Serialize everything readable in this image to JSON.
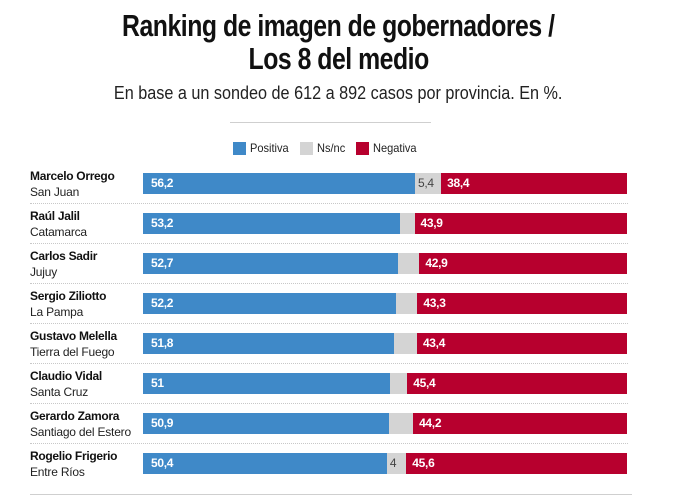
{
  "chart_data": {
    "type": "bar",
    "orientation": "horizontal-stacked",
    "title": [
      "Ranking de imagen de gobernadores /",
      "Los 8 del medio"
    ],
    "subtitle": "En base a un sondeo de 612 a 892 casos por provincia. En %.",
    "legend": [
      {
        "name": "Positiva",
        "color": "#3f89c8"
      },
      {
        "name": "Ns/nc",
        "color": "#d4d4d4"
      },
      {
        "name": "Negativa",
        "color": "#b7002e"
      }
    ],
    "legend_position": "top-center",
    "xlim": [
      0,
      100
    ],
    "rows": [
      {
        "name": "Marcelo Orrego",
        "province": "San Juan",
        "positiva": 56.2,
        "nsnc": 5.4,
        "negativa": 38.4,
        "pos_label": "56,2",
        "ns_label": "5,4",
        "neg_label": "38,4"
      },
      {
        "name": "Raúl Jalil",
        "province": "Catamarca",
        "positiva": 53.2,
        "nsnc": null,
        "negativa": 43.9,
        "pos_label": "53,2",
        "ns_label": "",
        "neg_label": "43,9"
      },
      {
        "name": "Carlos Sadir",
        "province": "Jujuy",
        "positiva": 52.7,
        "nsnc": null,
        "negativa": 42.9,
        "pos_label": "52,7",
        "ns_label": "",
        "neg_label": "42,9"
      },
      {
        "name": "Sergio Ziliotto",
        "province": "La Pampa",
        "positiva": 52.2,
        "nsnc": null,
        "negativa": 43.3,
        "pos_label": "52,2",
        "ns_label": "",
        "neg_label": "43,3"
      },
      {
        "name": "Gustavo Melella",
        "province": "Tierra del Fuego",
        "positiva": 51.8,
        "nsnc": null,
        "negativa": 43.4,
        "pos_label": "51,8",
        "ns_label": "",
        "neg_label": "43,4"
      },
      {
        "name": "Claudio Vidal",
        "province": "Santa Cruz",
        "positiva": 51,
        "nsnc": null,
        "negativa": 45.4,
        "pos_label": "51",
        "ns_label": "",
        "neg_label": "45,4"
      },
      {
        "name": "Gerardo Zamora",
        "province": "Santiago del Estero",
        "positiva": 50.9,
        "nsnc": null,
        "negativa": 44.2,
        "pos_label": "50,9",
        "ns_label": "",
        "neg_label": "44,2"
      },
      {
        "name": "Rogelio Frigerio",
        "province": "Entre Ríos",
        "positiva": 50.4,
        "nsnc": 4,
        "negativa": 45.6,
        "pos_label": "50,4",
        "ns_label": "4",
        "neg_label": "45,6"
      }
    ]
  }
}
